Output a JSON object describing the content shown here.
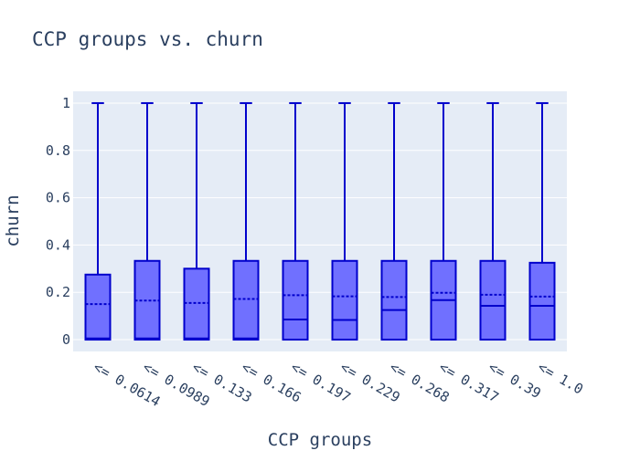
{
  "chart_data": {
    "type": "box",
    "title": "CCP groups vs. churn",
    "xlabel": "CCP groups",
    "ylabel": "churn",
    "ylim": [
      -0.05,
      1.05
    ],
    "yticks": [
      "0",
      "0.2",
      "0.4",
      "0.6",
      "0.8",
      "1"
    ],
    "ytick_values": [
      0,
      0.2,
      0.4,
      0.6,
      0.8,
      1
    ],
    "categories": [
      "<= 0.0614",
      "<= 0.0989",
      "<= 0.133",
      "<= 0.166",
      "<= 0.197",
      "<= 0.229",
      "<= 0.268",
      "<= 0.317",
      "<= 0.39",
      "<= 1.0"
    ],
    "series": [
      {
        "boxes": [
          {
            "min": 0,
            "q1": 0,
            "median": 0.005,
            "q3": 0.275,
            "max": 1,
            "mean": 0.15
          },
          {
            "min": 0,
            "q1": 0,
            "median": 0.005,
            "q3": 0.333,
            "max": 1,
            "mean": 0.165
          },
          {
            "min": 0,
            "q1": 0,
            "median": 0.005,
            "q3": 0.3,
            "max": 1,
            "mean": 0.155
          },
          {
            "min": 0,
            "q1": 0,
            "median": 0.005,
            "q3": 0.333,
            "max": 1,
            "mean": 0.172
          },
          {
            "min": 0,
            "q1": 0,
            "median": 0.085,
            "q3": 0.333,
            "max": 1,
            "mean": 0.188
          },
          {
            "min": 0,
            "q1": 0,
            "median": 0.083,
            "q3": 0.333,
            "max": 1,
            "mean": 0.183
          },
          {
            "min": 0,
            "q1": 0,
            "median": 0.125,
            "q3": 0.333,
            "max": 1,
            "mean": 0.18
          },
          {
            "min": 0,
            "q1": 0,
            "median": 0.167,
            "q3": 0.333,
            "max": 1,
            "mean": 0.198
          },
          {
            "min": 0,
            "q1": 0,
            "median": 0.143,
            "q3": 0.333,
            "max": 1,
            "mean": 0.19
          },
          {
            "min": 0,
            "q1": 0,
            "median": 0.143,
            "q3": 0.325,
            "max": 1,
            "mean": 0.182
          }
        ]
      }
    ],
    "colors": {
      "plot_bg": "#e5ecf6",
      "grid": "#ffffff",
      "box_fill": "#7070ff",
      "box_line": "#0000cc",
      "text": "#2a3f5f"
    },
    "grid": true,
    "boxmean": "dashed-line"
  }
}
